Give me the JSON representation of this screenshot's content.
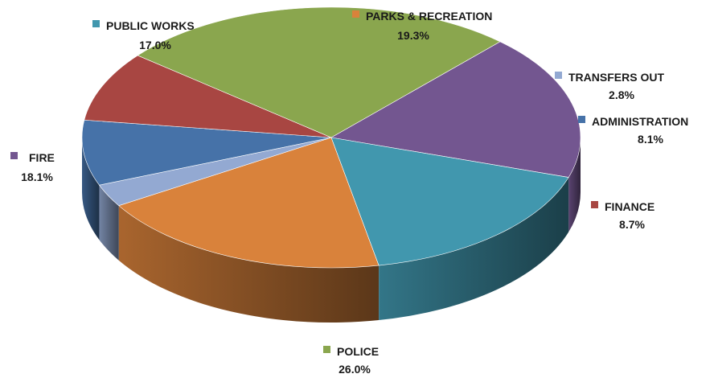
{
  "chart_data": {
    "type": "pie",
    "title": "",
    "style": "3d",
    "legend": "none",
    "slices": [
      {
        "label": "PARKS & RECREATION",
        "value": 19.3,
        "display": "19.3%",
        "color": "#D9823B"
      },
      {
        "label": "TRANSFERS OUT",
        "value": 2.8,
        "display": "2.8%",
        "color": "#93A9D2"
      },
      {
        "label": "ADMINISTRATION",
        "value": 8.1,
        "display": "8.1%",
        "color": "#4672A8"
      },
      {
        "label": "FINANCE",
        "value": 8.7,
        "display": "8.7%",
        "color": "#A84642"
      },
      {
        "label": "POLICE",
        "value": 26.0,
        "display": "26.0%",
        "color": "#8AA64E"
      },
      {
        "label": "FIRE",
        "value": 18.1,
        "display": "18.1%",
        "color": "#735690"
      },
      {
        "label": "PUBLIC WORKS",
        "value": 17.0,
        "display": "17.0%",
        "color": "#4197AE"
      }
    ]
  }
}
